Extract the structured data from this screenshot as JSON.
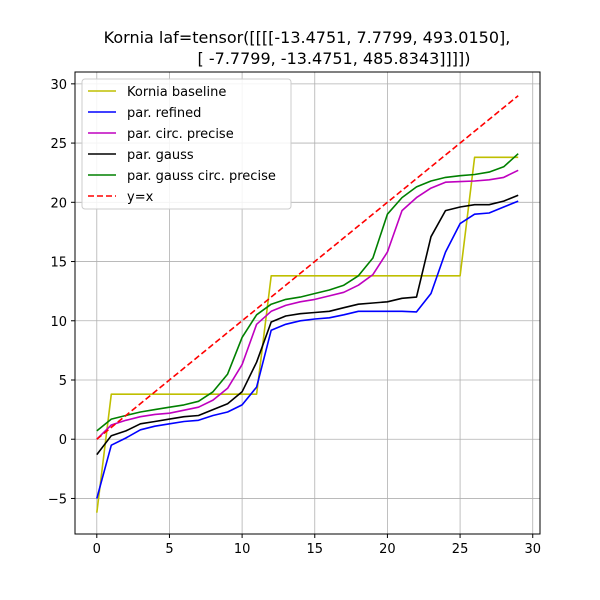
{
  "chart_data": {
    "type": "line",
    "title": [
      "Kornia laf=tensor([[[[-13.4751,   7.7799, 493.0150],",
      "[ -7.7799, -13.4751, 485.8343]]]])"
    ],
    "xlabel": "",
    "ylabel": "",
    "xlim": [
      -1.5,
      30.5
    ],
    "ylim": [
      -8,
      31
    ],
    "xticks": [
      0,
      5,
      10,
      15,
      20,
      25,
      30
    ],
    "yticks": [
      -5,
      0,
      5,
      10,
      15,
      20,
      25,
      30
    ],
    "grid": true,
    "legend_position": "upper-left",
    "series": [
      {
        "name": "Kornia baseline",
        "color": "#bfbf00",
        "dash": "solid",
        "x": [
          0,
          1,
          1,
          11,
          11,
          12,
          12,
          25,
          25,
          26,
          26,
          29
        ],
        "y": [
          -6.2,
          3.8,
          3.8,
          3.8,
          3.8,
          13.8,
          13.8,
          13.8,
          13.8,
          23.8,
          23.8,
          23.8
        ]
      },
      {
        "name": "par. refined",
        "color": "#0000ff",
        "dash": "solid",
        "x": [
          0,
          1,
          2,
          3,
          4,
          5,
          6,
          7,
          8,
          9,
          10,
          11,
          12,
          13,
          14,
          15,
          16,
          17,
          18,
          19,
          20,
          21,
          22,
          23,
          24,
          25,
          26,
          27,
          28,
          29
        ],
        "y": [
          -5.0,
          -0.5,
          0.1,
          0.8,
          1.1,
          1.3,
          1.5,
          1.6,
          2.0,
          2.3,
          2.9,
          4.4,
          9.2,
          9.7,
          10.0,
          10.15,
          10.25,
          10.5,
          10.8,
          10.8,
          10.8,
          10.8,
          10.75,
          12.3,
          15.8,
          18.2,
          19.0,
          19.1,
          19.6,
          20.1
        ]
      },
      {
        "name": "par. circ. precise",
        "color": "#bf00bf",
        "dash": "solid",
        "x": [
          0,
          1,
          2,
          3,
          4,
          5,
          6,
          7,
          8,
          9,
          10,
          11,
          12,
          13,
          14,
          15,
          16,
          17,
          18,
          19,
          20,
          21,
          22,
          23,
          24,
          25,
          26,
          27,
          28,
          29
        ],
        "y": [
          0.0,
          1.2,
          1.6,
          1.9,
          2.1,
          2.2,
          2.45,
          2.7,
          3.3,
          4.3,
          6.3,
          9.7,
          10.8,
          11.3,
          11.6,
          11.8,
          12.1,
          12.4,
          13.0,
          13.9,
          15.8,
          19.3,
          20.4,
          21.2,
          21.7,
          21.75,
          21.8,
          21.9,
          22.1,
          22.7
        ]
      },
      {
        "name": "par. gauss",
        "color": "#000000",
        "dash": "solid",
        "x": [
          0,
          1,
          2,
          3,
          4,
          5,
          6,
          7,
          8,
          9,
          10,
          11,
          12,
          13,
          14,
          15,
          16,
          17,
          18,
          19,
          20,
          21,
          22,
          23,
          24,
          25,
          26,
          27,
          28,
          29
        ],
        "y": [
          -1.3,
          0.3,
          0.7,
          1.3,
          1.5,
          1.7,
          1.9,
          2.0,
          2.5,
          3.0,
          4.0,
          6.5,
          9.9,
          10.4,
          10.6,
          10.7,
          10.8,
          11.1,
          11.4,
          11.5,
          11.6,
          11.9,
          12.0,
          17.1,
          19.3,
          19.6,
          19.8,
          19.8,
          20.1,
          20.6
        ]
      },
      {
        "name": "par. gauss circ. precise",
        "color": "#008000",
        "dash": "solid",
        "x": [
          0,
          1,
          2,
          3,
          4,
          5,
          6,
          7,
          8,
          9,
          10,
          11,
          12,
          13,
          14,
          15,
          16,
          17,
          18,
          19,
          20,
          21,
          22,
          23,
          24,
          25,
          26,
          27,
          28,
          29
        ],
        "y": [
          0.7,
          1.7,
          2.0,
          2.3,
          2.5,
          2.7,
          2.9,
          3.2,
          4.0,
          5.5,
          8.6,
          10.5,
          11.4,
          11.8,
          12.0,
          12.3,
          12.6,
          13.0,
          13.8,
          15.3,
          19.0,
          20.4,
          21.3,
          21.8,
          22.1,
          22.25,
          22.35,
          22.55,
          23.0,
          24.1
        ]
      },
      {
        "name": "y=x",
        "color": "#ff0000",
        "dash": "dashed",
        "x": [
          0,
          29
        ],
        "y": [
          0,
          29
        ]
      }
    ]
  }
}
